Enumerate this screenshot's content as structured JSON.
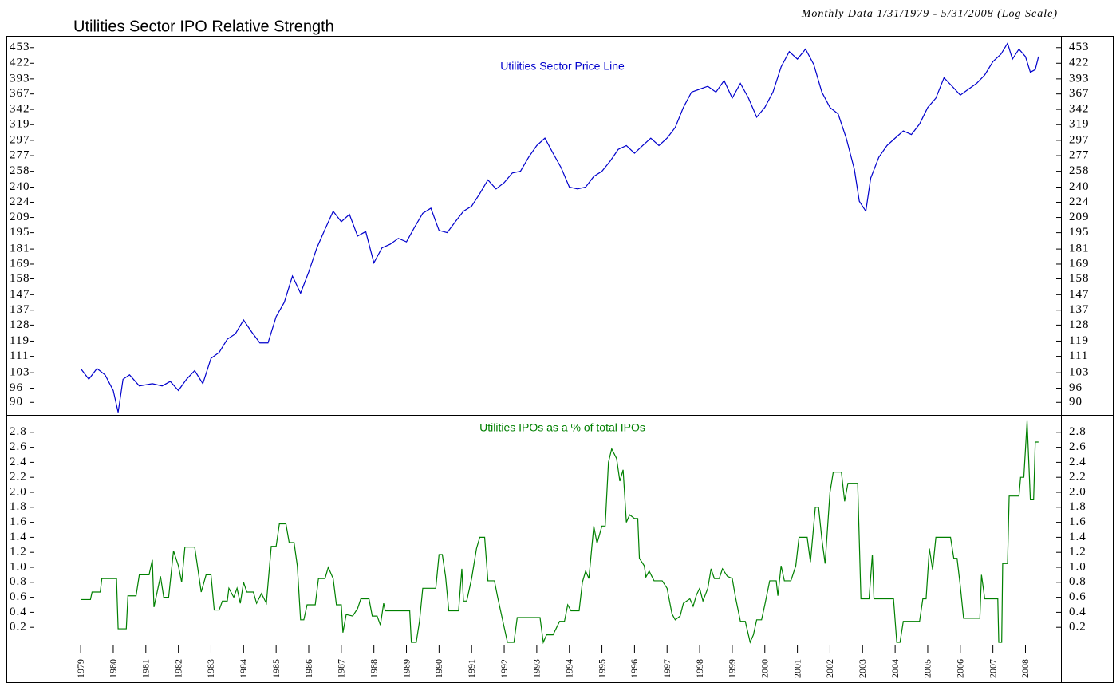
{
  "chart_data": [
    {
      "type": "line",
      "title": "Utilities Sector IPO Relative Strength",
      "subtitle": "Monthly Data 1/31/1979 - 5/31/2008 (Log Scale)",
      "annotation": "Utilities Sector Price Line",
      "color": "#0000cc",
      "log_scale": true,
      "xlim": [
        1977.43,
        2009.09
      ],
      "ylim": [
        85,
        478
      ],
      "yticks": [
        90,
        96,
        103,
        111,
        119,
        128,
        137,
        147,
        158,
        169,
        181,
        195,
        209,
        224,
        240,
        258,
        277,
        297,
        319,
        342,
        367,
        393,
        422,
        453
      ],
      "x": [
        1979.0,
        1979.25,
        1979.5,
        1979.75,
        1980.0,
        1980.15,
        1980.3,
        1980.5,
        1980.8,
        1981.2,
        1981.5,
        1981.75,
        1982.0,
        1982.25,
        1982.5,
        1982.75,
        1983.0,
        1983.25,
        1983.5,
        1983.75,
        1984.0,
        1984.25,
        1984.5,
        1984.75,
        1985.0,
        1985.25,
        1985.5,
        1985.75,
        1986.0,
        1986.25,
        1986.5,
        1986.75,
        1987.0,
        1987.25,
        1987.5,
        1987.75,
        1988.0,
        1988.25,
        1988.5,
        1988.75,
        1989.0,
        1989.25,
        1989.5,
        1989.75,
        1990.0,
        1990.25,
        1990.5,
        1990.75,
        1991.0,
        1991.25,
        1991.5,
        1991.75,
        1992.0,
        1992.25,
        1992.5,
        1992.75,
        1993.0,
        1993.25,
        1993.5,
        1993.75,
        1994.0,
        1994.25,
        1994.5,
        1994.75,
        1995.0,
        1995.25,
        1995.5,
        1995.75,
        1996.0,
        1996.25,
        1996.5,
        1996.75,
        1997.0,
        1997.25,
        1997.5,
        1997.75,
        1998.0,
        1998.25,
        1998.5,
        1998.75,
        1999.0,
        1999.25,
        1999.5,
        1999.75,
        2000.0,
        2000.25,
        2000.5,
        2000.75,
        2001.0,
        2001.25,
        2001.5,
        2001.75,
        2002.0,
        2002.25,
        2002.5,
        2002.75,
        2002.9,
        2003.1,
        2003.25,
        2003.5,
        2003.75,
        2004.0,
        2004.25,
        2004.5,
        2004.75,
        2005.0,
        2005.25,
        2005.5,
        2005.75,
        2006.0,
        2006.25,
        2006.5,
        2006.75,
        2007.0,
        2007.25,
        2007.45,
        2007.6,
        2007.8,
        2008.0,
        2008.15,
        2008.3,
        2008.4
      ],
      "values": [
        105,
        100,
        105,
        102,
        95,
        86,
        100,
        102,
        97,
        98,
        97,
        99,
        95,
        100,
        104,
        98,
        110,
        113,
        120,
        123,
        131,
        124,
        118,
        118,
        133,
        142,
        160,
        148,
        163,
        182,
        198,
        215,
        205,
        212,
        192,
        196,
        170,
        182,
        185,
        190,
        187,
        200,
        213,
        218,
        197,
        195,
        205,
        215,
        220,
        233,
        248,
        238,
        245,
        256,
        258,
        275,
        290,
        300,
        280,
        262,
        240,
        238,
        240,
        252,
        258,
        270,
        285,
        290,
        280,
        290,
        300,
        290,
        300,
        315,
        345,
        370,
        375,
        380,
        370,
        390,
        360,
        385,
        360,
        330,
        345,
        370,
        415,
        445,
        430,
        450,
        420,
        370,
        345,
        335,
        300,
        260,
        225,
        215,
        250,
        275,
        290,
        300,
        310,
        305,
        320,
        345,
        360,
        395,
        380,
        365,
        375,
        385,
        400,
        425,
        440,
        462,
        430,
        450,
        435,
        405,
        410,
        435
      ]
    },
    {
      "type": "line",
      "annotation": "Utilities IPOs as a % of total IPOs",
      "color": "#008000",
      "xlim": [
        1977.43,
        2009.09
      ],
      "ylim": [
        0,
        3
      ],
      "yticks": [
        0.2,
        0.4,
        0.6,
        0.8,
        {
          "value": 1,
          "label": "1.0"
        },
        1.2,
        1.4,
        1.6,
        1.8,
        {
          "value": 2,
          "label": "2.0"
        },
        2.2,
        2.4,
        2.6,
        2.8
      ],
      "xticks": [
        1979,
        1980,
        1981,
        1982,
        1983,
        1984,
        1985,
        1986,
        1987,
        1988,
        1989,
        1990,
        1991,
        1992,
        1993,
        1994,
        1995,
        1996,
        1997,
        1998,
        1999,
        2000,
        2001,
        2002,
        2003,
        2004,
        2005,
        2006,
        2007,
        2008
      ],
      "x": [
        1979.0,
        1979.3,
        1979.35,
        1979.6,
        1979.65,
        1980.1,
        1980.15,
        1980.4,
        1980.45,
        1980.7,
        1980.8,
        1981.1,
        1981.2,
        1981.25,
        1981.45,
        1981.55,
        1981.7,
        1981.85,
        1982.0,
        1982.1,
        1982.2,
        1982.5,
        1982.7,
        1982.85,
        1983.0,
        1983.1,
        1983.25,
        1983.35,
        1983.5,
        1983.55,
        1983.7,
        1983.8,
        1983.9,
        1984.0,
        1984.1,
        1984.3,
        1984.4,
        1984.55,
        1984.7,
        1984.85,
        1985.0,
        1985.1,
        1985.3,
        1985.4,
        1985.55,
        1985.65,
        1985.75,
        1985.85,
        1985.95,
        1986.2,
        1986.3,
        1986.5,
        1986.6,
        1986.75,
        1986.85,
        1987.0,
        1987.05,
        1987.15,
        1987.35,
        1987.5,
        1987.6,
        1987.85,
        1987.95,
        1988.1,
        1988.2,
        1988.3,
        1988.35,
        1988.7,
        1989.1,
        1989.15,
        1989.3,
        1989.4,
        1989.5,
        1989.9,
        1990.0,
        1990.1,
        1990.2,
        1990.3,
        1990.6,
        1990.7,
        1990.75,
        1990.85,
        1991.0,
        1991.15,
        1991.25,
        1991.4,
        1991.5,
        1991.7,
        1991.8,
        1992.0,
        1992.1,
        1992.3,
        1992.4,
        1993.1,
        1993.2,
        1993.3,
        1993.5,
        1993.7,
        1993.85,
        1993.95,
        1994.05,
        1994.3,
        1994.4,
        1994.5,
        1994.6,
        1994.75,
        1994.85,
        1995.0,
        1995.1,
        1995.2,
        1995.3,
        1995.45,
        1995.55,
        1995.65,
        1995.75,
        1995.85,
        1996.0,
        1996.1,
        1996.15,
        1996.3,
        1996.35,
        1996.45,
        1996.6,
        1996.85,
        1997.0,
        1997.15,
        1997.25,
        1997.4,
        1997.5,
        1997.7,
        1997.8,
        1997.9,
        1998.0,
        1998.1,
        1998.25,
        1998.35,
        1998.45,
        1998.6,
        1998.7,
        1998.85,
        1999.0,
        1999.1,
        1999.25,
        1999.4,
        1999.55,
        1999.65,
        1999.75,
        1999.9,
        2000.0,
        2000.15,
        2000.35,
        2000.4,
        2000.5,
        2000.6,
        2000.8,
        2000.95,
        2001.05,
        2001.3,
        2001.4,
        2001.55,
        2001.65,
        2001.75,
        2001.85,
        2002.0,
        2002.1,
        2002.35,
        2002.45,
        2002.55,
        2002.85,
        2002.95,
        2003.2,
        2003.3,
        2003.35,
        2003.95,
        2004.05,
        2004.15,
        2004.25,
        2004.75,
        2004.85,
        2004.95,
        2005.05,
        2005.15,
        2005.25,
        2005.7,
        2005.8,
        2005.9,
        2006.0,
        2006.1,
        2006.6,
        2006.65,
        2006.75,
        2007.15,
        2007.18,
        2007.27,
        2007.3,
        2007.45,
        2007.5,
        2007.8,
        2007.85,
        2007.95,
        2008.05,
        2008.15,
        2008.25,
        2008.3,
        2008.4
      ],
      "values": [
        0.57,
        0.57,
        0.67,
        0.67,
        0.85,
        0.85,
        0.18,
        0.18,
        0.62,
        0.62,
        0.9,
        0.9,
        1.1,
        0.47,
        0.88,
        0.6,
        0.6,
        1.22,
        1.02,
        0.8,
        1.27,
        1.27,
        0.67,
        0.9,
        0.9,
        0.43,
        0.43,
        0.55,
        0.55,
        0.72,
        0.6,
        0.72,
        0.52,
        0.8,
        0.67,
        0.67,
        0.52,
        0.65,
        0.52,
        1.28,
        1.28,
        1.58,
        1.58,
        1.33,
        1.33,
        1.02,
        0.3,
        0.3,
        0.5,
        0.5,
        0.85,
        0.85,
        1,
        0.85,
        0.5,
        0.5,
        0.13,
        0.37,
        0.35,
        0.45,
        0.58,
        0.58,
        0.35,
        0.35,
        0.23,
        0.52,
        0.42,
        0.42,
        0.42,
        0,
        0,
        0.28,
        0.72,
        0.72,
        1.17,
        1.17,
        0.88,
        0.42,
        0.42,
        0.98,
        0.55,
        0.55,
        0.85,
        1.25,
        1.4,
        1.4,
        0.82,
        0.82,
        0.6,
        0.2,
        0,
        0,
        0.33,
        0.33,
        0,
        0.1,
        0.1,
        0.28,
        0.28,
        0.5,
        0.42,
        0.42,
        0.8,
        0.95,
        0.85,
        1.55,
        1.32,
        1.55,
        1.55,
        2.4,
        2.58,
        2.45,
        2.15,
        2.3,
        1.6,
        1.7,
        1.65,
        1.65,
        1.12,
        1.02,
        0.87,
        0.95,
        0.82,
        0.82,
        0.72,
        0.38,
        0.3,
        0.35,
        0.52,
        0.58,
        0.48,
        0.63,
        0.72,
        0.55,
        0.72,
        0.98,
        0.85,
        0.85,
        0.98,
        0.88,
        0.85,
        0.6,
        0.28,
        0.28,
        0,
        0.1,
        0.3,
        0.3,
        0.5,
        0.82,
        0.82,
        0.62,
        1.02,
        0.82,
        0.82,
        1.02,
        1.4,
        1.4,
        1.07,
        1.8,
        1.8,
        1.38,
        1.05,
        2,
        2.27,
        2.27,
        1.88,
        2.12,
        2.12,
        0.58,
        0.58,
        1.17,
        0.58,
        0.58,
        0,
        0,
        0.28,
        0.28,
        0.58,
        0.58,
        1.25,
        0.97,
        1.4,
        1.4,
        1.12,
        1.12,
        0.75,
        0.32,
        0.32,
        0.9,
        0.58,
        0.58,
        0,
        0,
        1.05,
        1.05,
        1.95,
        1.95,
        2.2,
        2.2,
        2.95,
        1.9,
        1.9,
        2.67,
        2.67
      ]
    }
  ]
}
